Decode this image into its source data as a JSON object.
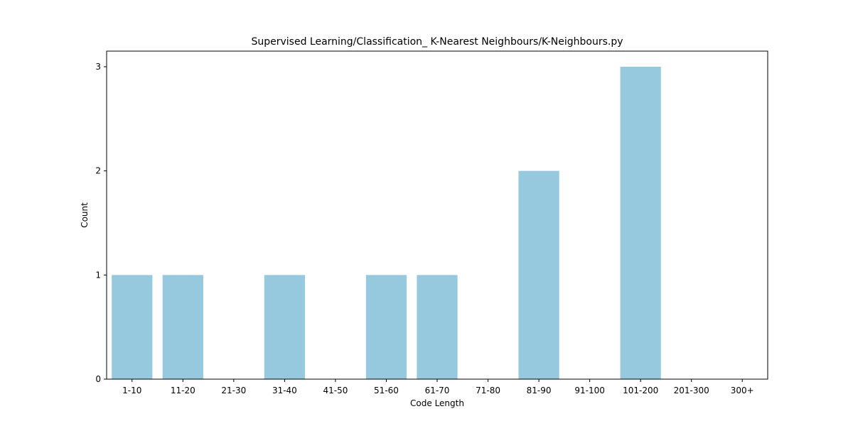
{
  "chart_data": {
    "type": "bar",
    "title": "Supervised Learning/Classification_ K-Nearest Neighbours/K-Neighbours.py",
    "xlabel": "Code Length",
    "ylabel": "Count",
    "categories": [
      "1-10",
      "11-20",
      "21-30",
      "31-40",
      "41-50",
      "51-60",
      "61-70",
      "71-80",
      "81-90",
      "91-100",
      "101-200",
      "201-300",
      "300+"
    ],
    "values": [
      1,
      1,
      0,
      1,
      0,
      1,
      1,
      0,
      2,
      0,
      3,
      0,
      0
    ],
    "yticks": [
      0,
      1,
      2,
      3
    ],
    "ylim": [
      0,
      3.15
    ],
    "bar_color": "#96c9de",
    "grid": false,
    "legend": "none"
  }
}
